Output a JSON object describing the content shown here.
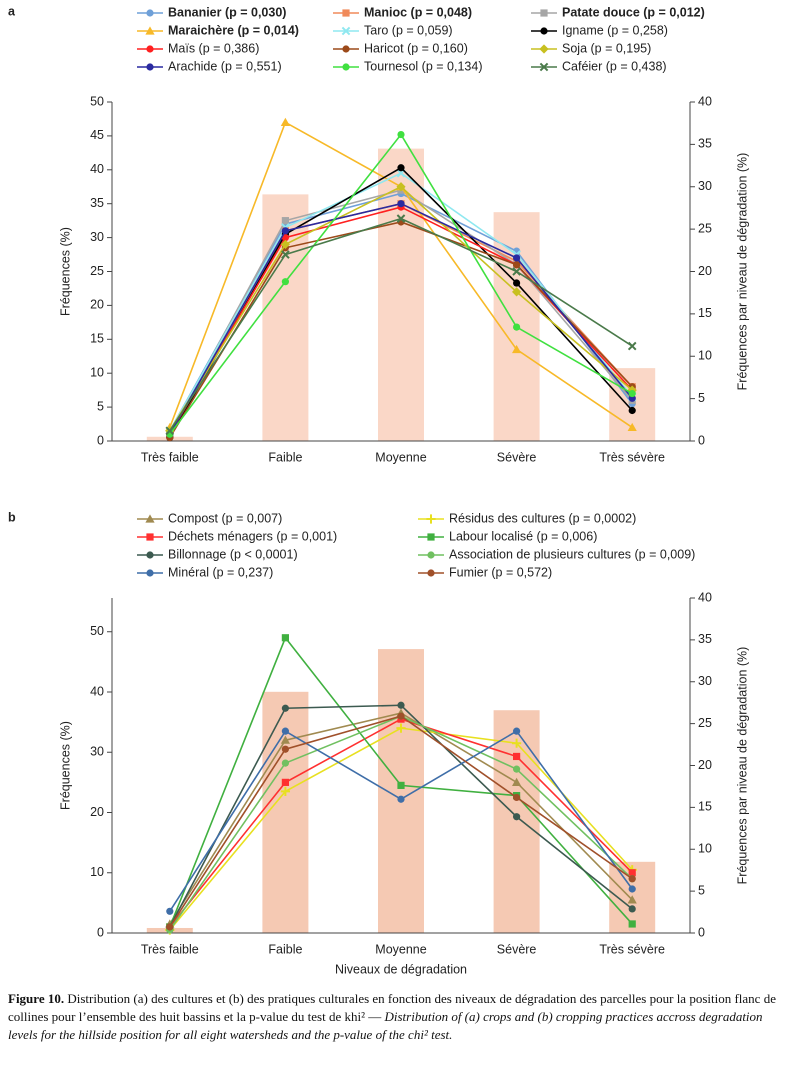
{
  "chart_data": [
    {
      "type": "line",
      "panel_label": "a",
      "legend": "top",
      "legend_columns": 3,
      "ylabel": "Fréquences (%)",
      "y2label": "Fréquences par niveau de dégradation (%)",
      "categories": [
        "Très faible",
        "Faible",
        "Moyenne",
        "Sévère",
        "Très sévère"
      ],
      "ylim": [
        0,
        50
      ],
      "yticks": [
        0,
        5,
        10,
        15,
        20,
        25,
        30,
        35,
        40,
        45,
        50
      ],
      "y2lim": [
        0,
        40
      ],
      "y2ticks": [
        0,
        5,
        10,
        15,
        20,
        25,
        30,
        35,
        40
      ],
      "bars": {
        "axis": "y2",
        "color": "#fad7c7",
        "values": [
          0.5,
          29.1,
          34.5,
          27.0,
          8.6
        ]
      },
      "series": [
        {
          "name": "Bananier (p = 0,030)",
          "bold": true,
          "marker": "circle",
          "color": "#6fa0d8",
          "values": [
            1.5,
            32,
            36.5,
            28,
            5.5
          ]
        },
        {
          "name": "Manioc (p = 0,048)",
          "bold": true,
          "marker": "square",
          "color": "#f08a5a",
          "values": [
            1.2,
            31,
            35,
            26.5,
            8
          ]
        },
        {
          "name": "Patate douce (p = 0,012)",
          "bold": true,
          "marker": "square",
          "color": "#a6a6a6",
          "values": [
            1,
            32.5,
            37,
            26,
            6
          ]
        },
        {
          "name": "Maraichère (p = 0,014)",
          "bold": true,
          "marker": "triangle",
          "color": "#f7b928",
          "values": [
            2,
            47,
            37.5,
            13.5,
            2
          ]
        },
        {
          "name": "Taro (p = 0,059)",
          "marker": "x",
          "color": "#8fe8f0",
          "values": [
            1.5,
            31.5,
            39.5,
            27.5,
            6.5
          ]
        },
        {
          "name": "Igname (p = 0,258)",
          "marker": "circle",
          "color": "#000000",
          "values": [
            0.5,
            30.5,
            40.3,
            23.3,
            4.5
          ]
        },
        {
          "name": "Maïs (p = 0,386)",
          "marker": "circle",
          "color": "#ff2020",
          "values": [
            1,
            30,
            34.5,
            26,
            7.5
          ]
        },
        {
          "name": "Haricot (p = 0,160)",
          "marker": "circle",
          "color": "#9c4a1a",
          "values": [
            0.5,
            28.5,
            32.3,
            26,
            8
          ]
        },
        {
          "name": "Soja (p = 0,195)",
          "marker": "diamond",
          "color": "#c8c020",
          "values": [
            1.5,
            29,
            37.5,
            22,
            7.5
          ]
        },
        {
          "name": "Arachide (p = 0,551)",
          "marker": "circle",
          "color": "#2a2aa0",
          "values": [
            1,
            31,
            35,
            27,
            6.3
          ]
        },
        {
          "name": "Tournesol (p = 0,134)",
          "marker": "circle",
          "color": "#40e040",
          "values": [
            1,
            23.5,
            45.2,
            16.8,
            7
          ]
        },
        {
          "name": "Caféier (p = 0,438)",
          "marker": "x",
          "color": "#4a7a4a",
          "values": [
            1.5,
            27.5,
            32.8,
            25,
            14
          ]
        }
      ]
    },
    {
      "type": "line",
      "panel_label": "b",
      "legend": "top",
      "legend_columns": 2,
      "xlabel": "Niveaux de dégradation",
      "ylabel": "Fréquences (%)",
      "y2label": "Fréquences par niveau de dégradation (%)",
      "categories": [
        "Très faible",
        "Faible",
        "Moyenne",
        "Sévère",
        "Très sévère"
      ],
      "ylim": [
        0,
        55.6
      ],
      "yticks": [
        0,
        10,
        20,
        30,
        40,
        50
      ],
      "y2lim": [
        0,
        40
      ],
      "y2ticks": [
        0,
        5,
        10,
        15,
        20,
        25,
        30,
        35,
        40
      ],
      "bars": {
        "axis": "y2",
        "color": "#f5c9b3",
        "values": [
          0.6,
          28.8,
          33.9,
          26.6,
          8.5
        ]
      },
      "series": [
        {
          "name": "Compost (p = 0,007)",
          "marker": "triangle",
          "color": "#a08a50",
          "values": [
            1.5,
            32,
            36.5,
            25,
            5.5
          ]
        },
        {
          "name": "Résidus des cultures (p = 0,0002)",
          "marker": "plus",
          "color": "#e8e020",
          "values": [
            0.5,
            23.5,
            34,
            31.5,
            10.5
          ]
        },
        {
          "name": "Déchets ménagers (p = 0,001)",
          "marker": "square",
          "color": "#ff3030",
          "values": [
            1,
            25,
            35.5,
            29.3,
            10
          ]
        },
        {
          "name": "Labour localisé (p = 0,006)",
          "marker": "square",
          "color": "#40b040",
          "values": [
            1,
            49,
            24.5,
            22.8,
            1.5
          ]
        },
        {
          "name": "Billonnage (p < 0,0001)",
          "marker": "circle",
          "color": "#3c5a50",
          "values": [
            1,
            37.3,
            37.8,
            19.3,
            4
          ]
        },
        {
          "name": "Association de plusieurs cultures (p = 0,009)",
          "marker": "circle",
          "color": "#70c060",
          "values": [
            0.5,
            28.2,
            36,
            27.2,
            9
          ]
        },
        {
          "name": "Minéral (p = 0,237)",
          "marker": "circle",
          "color": "#3f6ea8",
          "values": [
            3.6,
            33.5,
            22.2,
            33.5,
            7.3
          ]
        },
        {
          "name": "Fumier (p = 0,572)",
          "marker": "circle",
          "color": "#a0502a",
          "values": [
            1,
            30.5,
            36,
            22.5,
            9
          ]
        }
      ]
    }
  ],
  "caption": {
    "label": "Figure 10.",
    "text_fr": "Distribution (a) des cultures et (b) des pratiques culturales en fonction des niveaux de dégradation des parcelles pour la position flanc de collines pour l’ensemble des huit bassins et la p-value du test de khi² —",
    "text_en": "Distribution of (a) crops and (b) cropping practices accross degradation levels for the hillside position for all eight watersheds and the p-value of the chi² test."
  }
}
